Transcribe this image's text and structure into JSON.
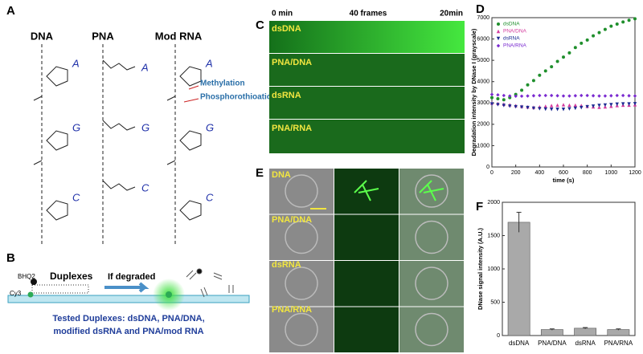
{
  "panel_letters": [
    "A",
    "B",
    "C",
    "D",
    "E",
    "F"
  ],
  "panel_a": {
    "columns": [
      {
        "title": "DNA",
        "bases": [
          "A",
          "G",
          "C"
        ]
      },
      {
        "title": "PNA",
        "bases": [
          "A",
          "G",
          "C"
        ]
      },
      {
        "title": "Mod RNA",
        "bases": [
          "A",
          "G",
          "C"
        ]
      }
    ],
    "annotations": [
      "Methylation",
      "Phosphorothioation"
    ]
  },
  "panel_b": {
    "labels": [
      "BHQ2",
      "Cy3",
      "Duplexes",
      "If degraded"
    ],
    "caption": [
      "Tested Duplexes: dsDNA, PNA/DNA,",
      "modified dsRNA and PNA/mod RNA"
    ]
  },
  "panel_c": {
    "header": [
      "0 min",
      "40 frames",
      "20min"
    ],
    "rows": [
      "dsDNA",
      "PNA/DNA",
      "dsRNA",
      "PNA/RNA"
    ]
  },
  "panel_e": {
    "rows": [
      "DNA",
      "PNA/DNA",
      "dsRNA",
      "PNA/RNA"
    ]
  },
  "chart_data": [
    {
      "type": "scatter",
      "y_label": "Degradation intensity by DNase I (grayscale)",
      "x_label": "time (s)",
      "x": [
        0,
        50,
        100,
        150,
        200,
        250,
        300,
        350,
        400,
        450,
        500,
        550,
        600,
        650,
        700,
        750,
        800,
        850,
        900,
        950,
        1000,
        1050,
        1100,
        1150,
        1200
      ],
      "series": [
        {
          "name": "dsDNA",
          "color": "#1f8f2c",
          "marker": "circle",
          "values": [
            3250,
            3200,
            3150,
            3250,
            3400,
            3600,
            3850,
            4050,
            4300,
            4500,
            4700,
            4950,
            5150,
            5350,
            5600,
            5800,
            5950,
            6150,
            6300,
            6450,
            6600,
            6700,
            6800,
            6880,
            6950
          ]
        },
        {
          "name": "PNA/DNA",
          "color": "#d43c9e",
          "marker": "triangle",
          "values": [
            3000,
            2980,
            2950,
            2920,
            2880,
            2850,
            2820,
            2800,
            2820,
            2850,
            2880,
            2900,
            2920,
            2900,
            2900,
            2880,
            2850,
            2820,
            2800,
            2820,
            2850,
            2880,
            2900,
            2900,
            2920
          ]
        },
        {
          "name": "dsRNA",
          "color": "#1c2a92",
          "marker": "triangle-down",
          "values": [
            2950,
            2920,
            2880,
            2850,
            2820,
            2800,
            2780,
            2750,
            2730,
            2710,
            2700,
            2700,
            2700,
            2720,
            2750,
            2780,
            2820,
            2850,
            2880,
            2900,
            2920,
            2940,
            2950,
            2950,
            2960
          ]
        },
        {
          "name": "PNA/RNA",
          "color": "#7a2ad0",
          "marker": "diamond",
          "values": [
            3400,
            3380,
            3350,
            3330,
            3320,
            3320,
            3330,
            3340,
            3350,
            3350,
            3350,
            3340,
            3330,
            3330,
            3340,
            3350,
            3350,
            3340,
            3330,
            3330,
            3340,
            3350,
            3350,
            3340,
            3330
          ]
        }
      ],
      "xlim": [
        0,
        1200
      ],
      "xticks": [
        0,
        200,
        400,
        600,
        800,
        1000,
        1200
      ],
      "ylim": [
        0,
        7000
      ],
      "yticks": [
        0,
        1000,
        2000,
        3000,
        4000,
        5000,
        6000,
        7000
      ],
      "legend": "upper-left"
    },
    {
      "type": "bar",
      "y_label": "DNase signal intensity (A.U.)",
      "categories": [
        "dsDNA",
        "PNA/DNA",
        "dsRNA",
        "PNA/RNA"
      ],
      "values": [
        1700,
        90,
        110,
        90
      ],
      "errors": [
        150,
        10,
        10,
        10
      ],
      "color": "#a9a9a9",
      "ylim": [
        0,
        2000
      ],
      "yticks": [
        0,
        500,
        1000,
        1500,
        2000
      ]
    }
  ]
}
